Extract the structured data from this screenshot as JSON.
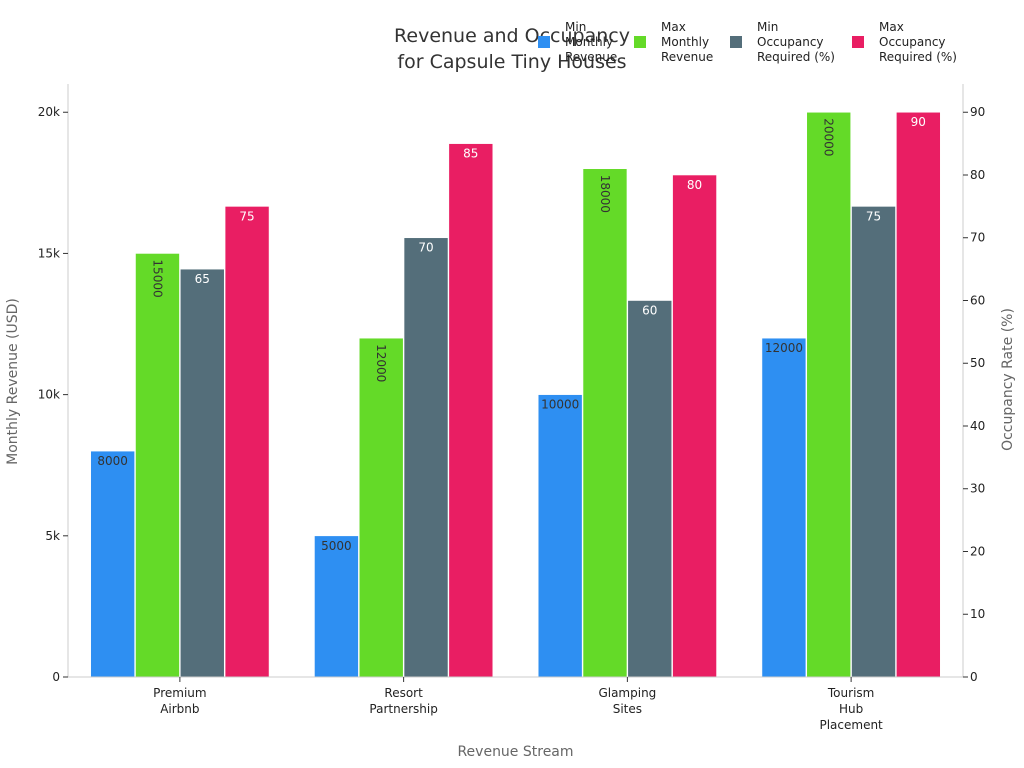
{
  "chart_data": {
    "type": "bar",
    "title": [
      "Revenue and Occupancy",
      "for Capsule Tiny Houses"
    ],
    "xlabel": "Revenue Stream",
    "ylabel": "Monthly Revenue (USD)",
    "y2label": "Occupancy Rate (%)",
    "categories": [
      [
        "Premium",
        "Airbnb"
      ],
      [
        "Resort",
        "Partnership"
      ],
      [
        "Glamping",
        "Sites"
      ],
      [
        "Tourism",
        "Hub",
        "Placement"
      ]
    ],
    "ylim": [
      0,
      21000
    ],
    "y2lim": [
      0,
      94.5
    ],
    "yticks": [
      0,
      5000,
      10000,
      15000,
      20000
    ],
    "ytick_labels": [
      "0",
      "5k",
      "10k",
      "15k",
      "20k"
    ],
    "y2ticks": [
      0,
      10,
      20,
      30,
      40,
      50,
      60,
      70,
      80,
      90
    ],
    "y2tick_labels": [
      "0",
      "10",
      "20",
      "30",
      "40",
      "50",
      "60",
      "70",
      "80",
      "90"
    ],
    "grid": false,
    "legend_position": "top-right",
    "series": [
      {
        "name": [
          "Min",
          "Monthly",
          "Revenue"
        ],
        "axis": "left",
        "color": "#2E8FF2",
        "label_color": "#333333",
        "label_rotated": false,
        "values": [
          8000,
          5000,
          10000,
          12000
        ]
      },
      {
        "name": [
          "Max",
          "Monthly",
          "Revenue"
        ],
        "axis": "left",
        "color": "#64DA28",
        "label_color": "#333333",
        "label_rotated": true,
        "values": [
          15000,
          12000,
          18000,
          20000
        ]
      },
      {
        "name": [
          "Min",
          "Occupancy",
          "Required (%)"
        ],
        "axis": "right",
        "color": "#546E7A",
        "label_color": "#ffffff",
        "label_rotated": false,
        "values": [
          65,
          70,
          60,
          75
        ]
      },
      {
        "name": [
          "Max",
          "Occupancy",
          "Required (%)"
        ],
        "axis": "right",
        "color": "#E91E63",
        "label_color": "#ffffff",
        "label_rotated": false,
        "values": [
          75,
          85,
          80,
          90
        ]
      }
    ]
  }
}
